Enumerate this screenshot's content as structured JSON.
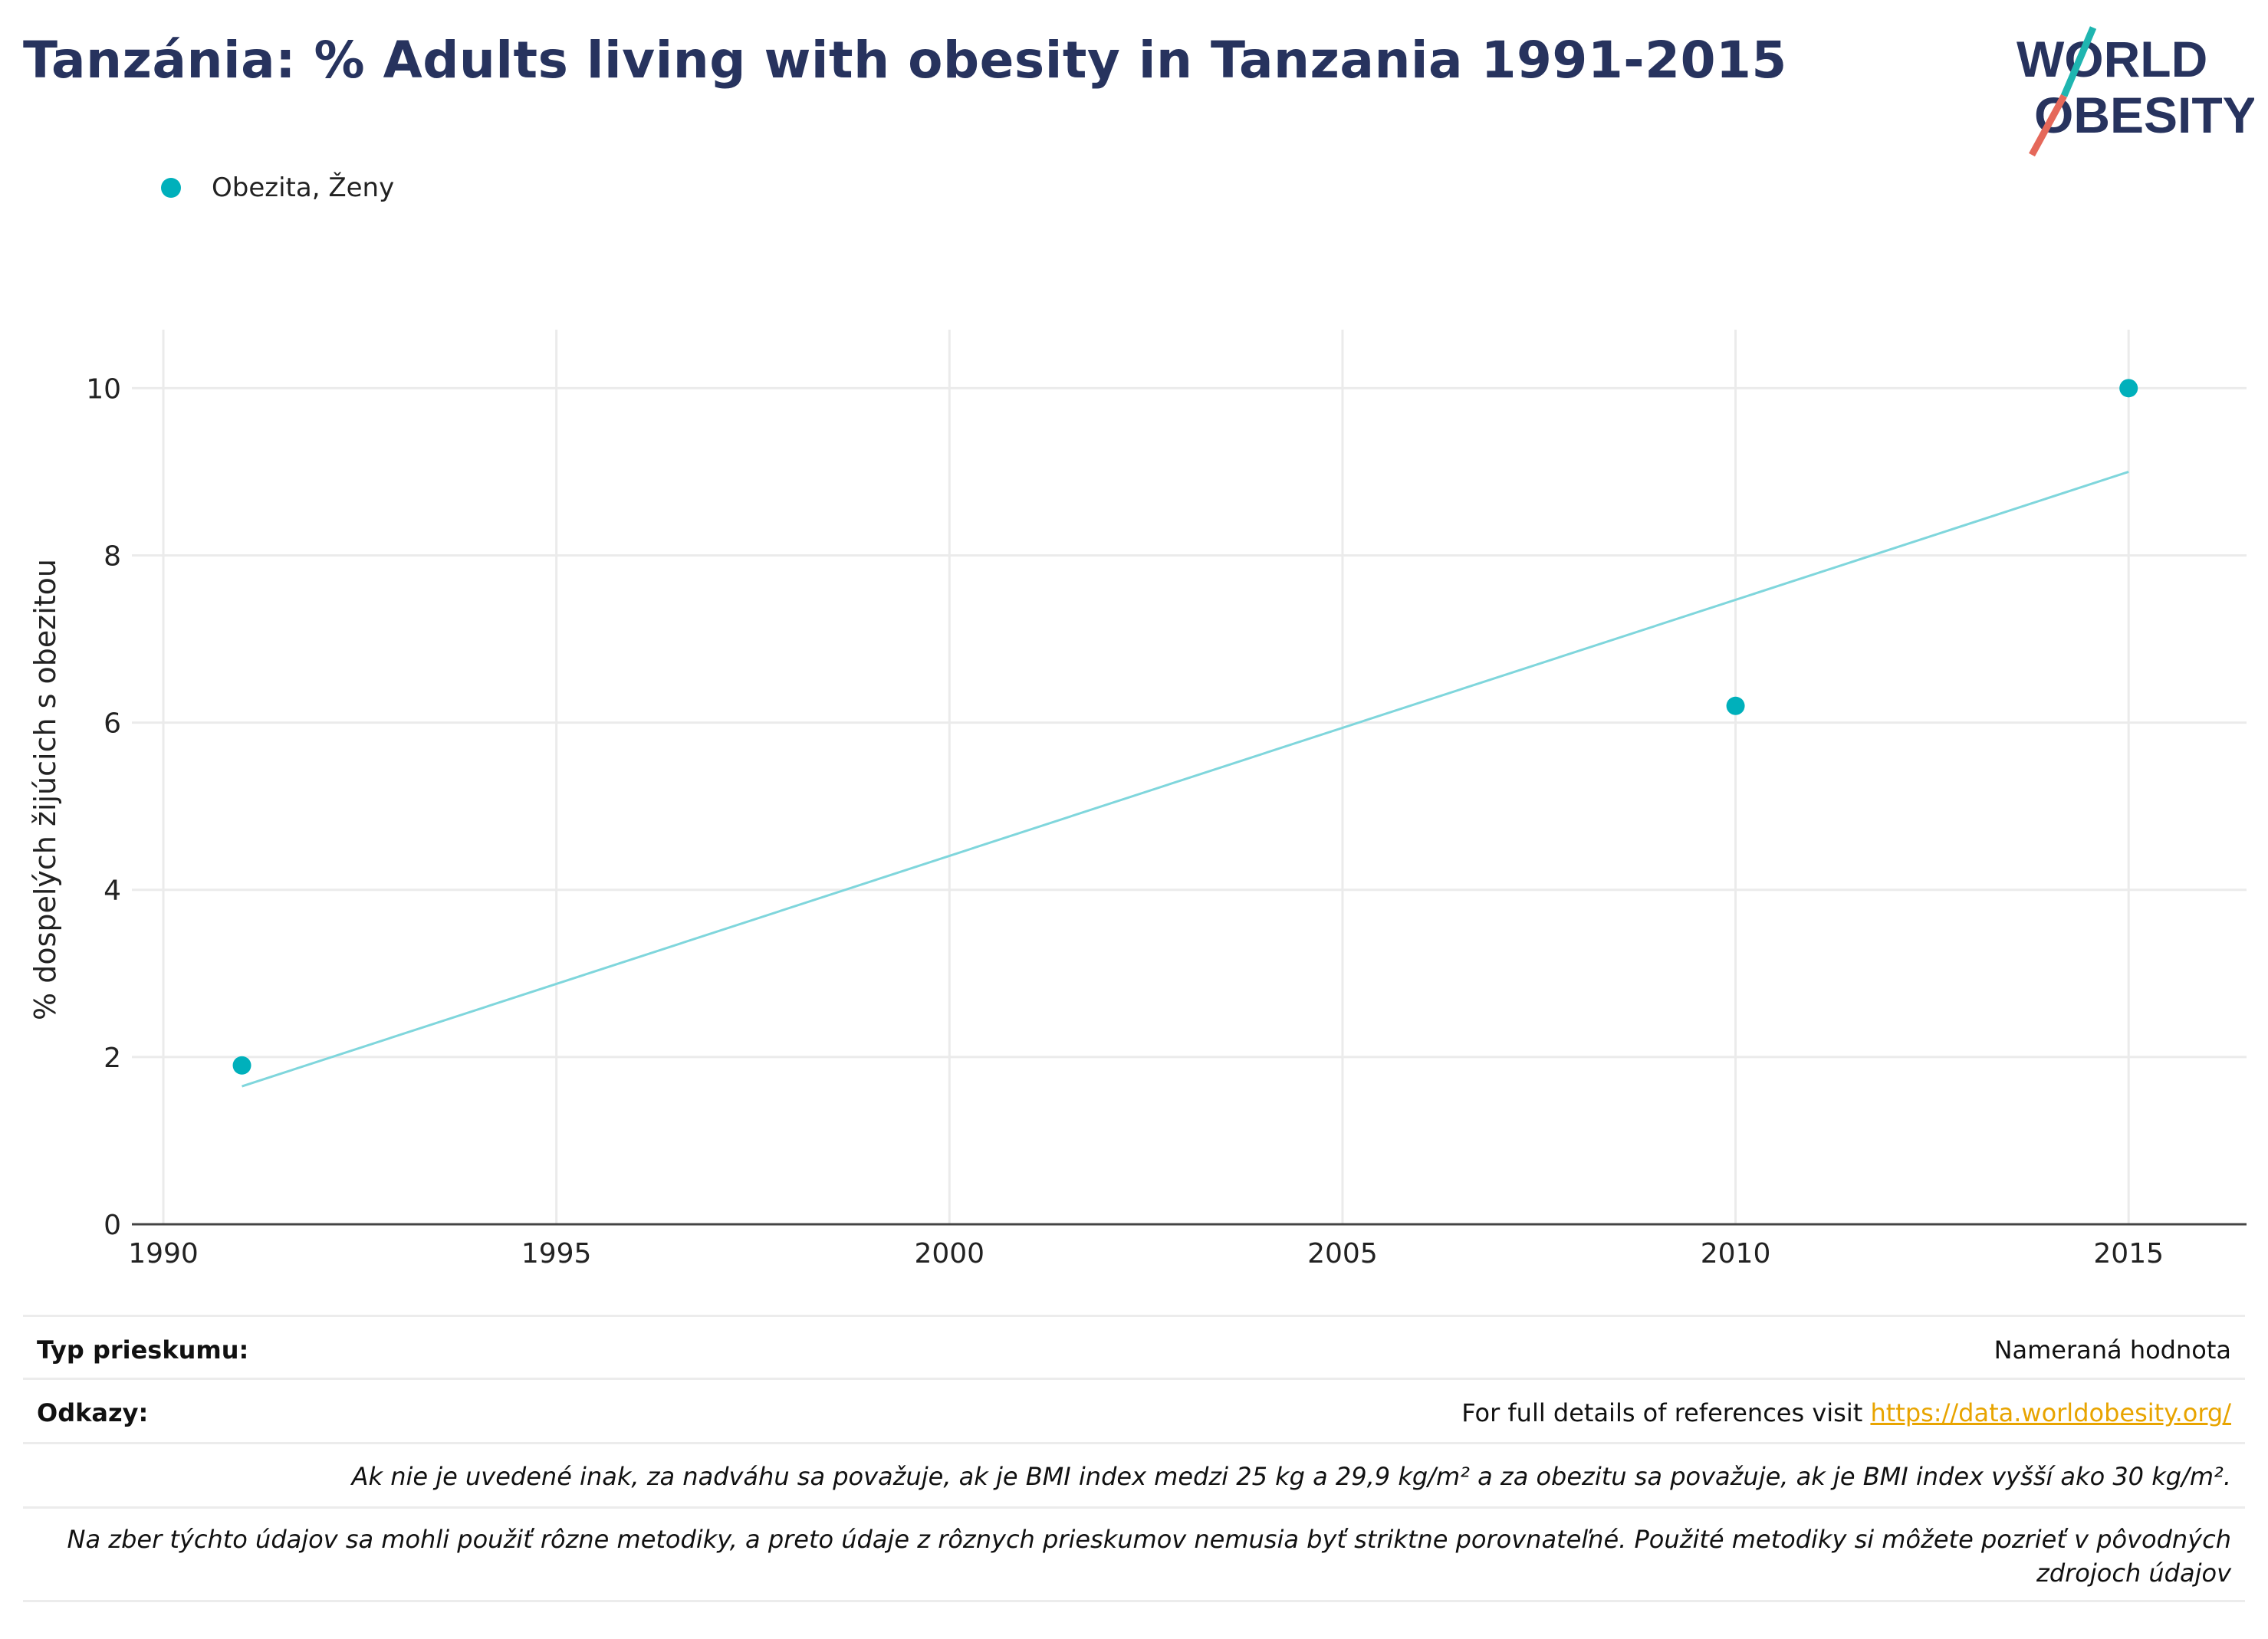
{
  "page": {
    "title": "Tanzánia: % Adults living with obesity in Tanzania 1991-2015"
  },
  "logo": {
    "line1": "WORLD",
    "line2": "OBESITY",
    "colors": {
      "text": "#27335e",
      "slash_top": "#1fb5b0",
      "slash_bottom": "#e5685a"
    }
  },
  "legend": {
    "items": [
      {
        "label": "Obezita, Ženy",
        "color": "#00b0bb"
      }
    ]
  },
  "chart_data": {
    "type": "scatter",
    "title": "Tanzánia: % Adults living with obesity in Tanzania 1991-2015",
    "ylabel": "% dospelých žijúcich s obezitou",
    "xlabel": "",
    "xlim": [
      1989.6,
      2016.5
    ],
    "ylim": [
      0,
      10.7
    ],
    "xticks": [
      1990,
      1995,
      2000,
      2005,
      2010,
      2015
    ],
    "yticks": [
      0,
      2,
      4,
      6,
      8,
      10
    ],
    "grid": true,
    "legend_position": "top-left",
    "series": [
      {
        "name": "Obezita, Ženy",
        "color": "#00b0bb",
        "x": [
          1991,
          2010,
          2015
        ],
        "y": [
          1.9,
          6.2,
          10.0
        ]
      }
    ],
    "trendline": {
      "color": "#7fd6dc",
      "x": [
        1991,
        2015
      ],
      "y": [
        1.65,
        9.0
      ]
    }
  },
  "info": {
    "survey_type_label": "Typ prieskumu:",
    "survey_type_value": "Nameraná hodnota",
    "references_label": "Odkazy:",
    "references_text": "For full details of references visit ",
    "references_link": "https://data.worldobesity.org/",
    "note1": "Ak nie je uvedené inak, za nadváhu sa považuje, ak je BMI index medzi 25 kg a 29,9 kg/m² a za obezitu sa považuje, ak je BMI index vyšší ako 30 kg/m².",
    "note2": "Na zber týchto údajov sa mohli použiť rôzne metodiky, a preto údaje z rôznych prieskumov nemusia byť striktne porovnateľné. Použité metodiky si môžete pozrieť v pôvodných zdrojoch údajov"
  }
}
